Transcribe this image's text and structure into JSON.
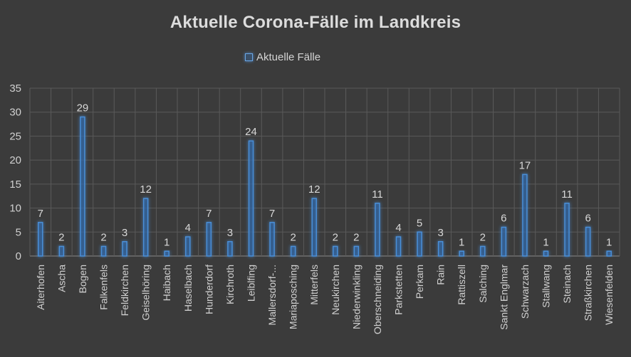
{
  "chart_data": {
    "type": "bar",
    "title": "Aktuelle Corona-Fälle im Landkreis",
    "xlabel": "",
    "ylabel": "",
    "ylim": [
      0,
      35
    ],
    "yticks": [
      0,
      5,
      10,
      15,
      20,
      25,
      30,
      35
    ],
    "grid": true,
    "legend_position": "top",
    "bar_color": "#4a8fd8",
    "glow_color": "#5aa8ff",
    "categories": [
      "Aiterhofen",
      "Ascha",
      "Bogen",
      "Falkenfels",
      "Feldkirchen",
      "Geiselhöring",
      "Haibach",
      "Haselbach",
      "Hunderdorf",
      "Kirchroth",
      "Leiblfing",
      "Mallersdorf-...",
      "Mariaposching",
      "Mitterfels",
      "Neukirchen",
      "Niederwinkling",
      "Oberschneiding",
      "Parkstetten",
      "Perkam",
      "Rain",
      "Rattiszell",
      "Salching",
      "Sankt Englmar",
      "Schwarzach",
      "Stallwang",
      "Steinach",
      "Straßkirchen",
      "Wiesenfelden"
    ],
    "series": [
      {
        "name": "Aktuelle Fälle",
        "values": [
          7,
          2,
          29,
          2,
          3,
          12,
          1,
          4,
          7,
          3,
          24,
          7,
          2,
          12,
          2,
          2,
          11,
          4,
          5,
          3,
          1,
          2,
          6,
          17,
          1,
          11,
          6,
          1
        ]
      }
    ]
  }
}
